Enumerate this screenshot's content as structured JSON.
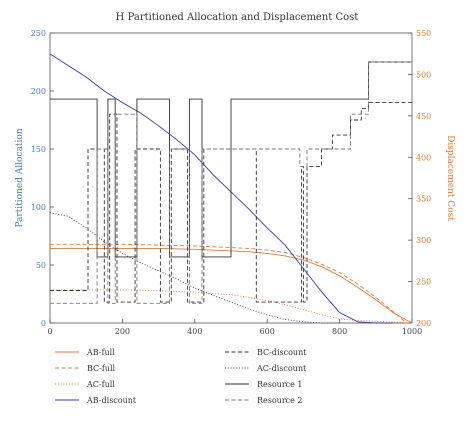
{
  "chart_data": {
    "type": "line",
    "title": "H Partitioned Allocation and Displacement Cost",
    "xlabel": "",
    "ylabel_left": "Partitioned Allocation",
    "ylabel_right": "Displacement Cost",
    "xlim": [
      0,
      1000
    ],
    "ylim_left": [
      0,
      250
    ],
    "ylim_right": [
      200,
      550
    ],
    "x_ticks": [
      "0",
      "200",
      "400",
      "600",
      "800",
      "1000"
    ],
    "y_left_ticks": [
      "0",
      "50",
      "100",
      "150",
      "200",
      "250"
    ],
    "y_right_ticks": [
      "200",
      "250",
      "300",
      "350",
      "400",
      "450",
      "500",
      "550"
    ],
    "colors": {
      "left_axis": "#3b7dc4",
      "right_axis": "#e07b39",
      "ab_discount": "#3a3aa8",
      "black": "#333333",
      "gray": "#777777"
    },
    "series": [
      {
        "name": "AB-full",
        "axis": "right",
        "style": "solid",
        "color": "#e07b39",
        "x": [
          0,
          100,
          200,
          300,
          400,
          500,
          550,
          600,
          650,
          700,
          750,
          800,
          850,
          900,
          950,
          1000
        ],
        "y": [
          290,
          290,
          290,
          290,
          289,
          287,
          286,
          284,
          281,
          276,
          268,
          257,
          243,
          228,
          212,
          200
        ]
      },
      {
        "name": "BC-full",
        "axis": "right",
        "style": "dashed",
        "color": "#e07b39",
        "x": [
          0,
          100,
          200,
          300,
          400,
          500,
          550,
          600,
          650,
          700,
          750,
          800,
          850,
          900,
          950,
          985
        ],
        "y": [
          295,
          295,
          295,
          294,
          293,
          291,
          290,
          288,
          285,
          279,
          271,
          261,
          247,
          231,
          213,
          200
        ]
      },
      {
        "name": "AC-full",
        "axis": "right",
        "style": "dotted",
        "color": "#e07b39",
        "x": [
          0,
          100,
          200,
          300,
          400,
          500,
          550,
          600,
          650,
          700,
          750,
          800,
          850,
          900,
          950,
          1000
        ],
        "y": [
          240,
          240,
          240,
          239,
          237,
          234,
          231,
          227,
          222,
          216,
          210,
          205,
          203,
          202,
          201,
          200
        ]
      },
      {
        "name": "AB-discount",
        "axis": "left",
        "style": "solid",
        "color": "#3a3aa8",
        "x": [
          0,
          50,
          100,
          150,
          200,
          250,
          300,
          350,
          400,
          450,
          500,
          550,
          600,
          650,
          700,
          750,
          800,
          850,
          900,
          950
        ],
        "y": [
          232,
          222,
          212,
          200,
          190,
          181,
          170,
          158,
          145,
          128,
          113,
          98,
          82,
          67,
          47,
          27,
          9,
          1,
          0,
          0
        ]
      },
      {
        "name": "BC-discount",
        "axis": "left",
        "style": "dashed",
        "color": "#333333",
        "x": [
          0,
          105,
          105,
          150,
          150,
          165,
          165,
          185,
          185,
          235,
          235,
          305,
          305,
          335,
          335,
          380,
          380,
          425,
          425,
          570,
          570,
          600,
          600,
          640,
          640,
          695,
          695,
          700,
          700,
          710,
          710,
          750,
          750,
          780,
          780,
          800,
          800,
          830,
          830,
          850,
          850,
          860,
          860,
          880,
          880,
          1000
        ],
        "y": [
          28,
          28,
          150,
          150,
          18,
          18,
          180,
          180,
          18,
          18,
          150,
          150,
          18,
          18,
          150,
          150,
          18,
          18,
          150,
          150,
          18,
          18,
          18,
          18,
          18,
          18,
          135,
          135,
          18,
          18,
          135,
          135,
          150,
          150,
          162,
          162,
          162,
          162,
          175,
          175,
          175,
          175,
          185,
          185,
          190,
          190
        ]
      },
      {
        "name": "AC-discount",
        "axis": "left",
        "style": "dotted",
        "color": "#3a3aa8",
        "x": [
          0,
          50,
          100,
          150,
          200,
          250,
          300,
          350,
          400,
          450,
          500,
          550,
          600,
          650,
          700,
          750,
          800
        ],
        "y": [
          95,
          92,
          82,
          70,
          60,
          52,
          45,
          38,
          30,
          24,
          18,
          12,
          7,
          3,
          1,
          0,
          0
        ]
      },
      {
        "name": "Resource 1",
        "axis": "left",
        "style": "solid",
        "color": "#333333",
        "x": [
          0,
          130,
          130,
          160,
          160,
          180,
          180,
          240,
          240,
          330,
          330,
          385,
          385,
          420,
          420,
          500,
          500,
          880,
          880,
          1000
        ],
        "y": [
          193,
          193,
          57,
          57,
          193,
          193,
          57,
          57,
          193,
          193,
          57,
          57,
          193,
          193,
          57,
          57,
          193,
          193,
          225,
          225
        ]
      },
      {
        "name": "Resource 2",
        "axis": "left",
        "style": "dashed",
        "color": "#777777",
        "x": [
          0,
          130,
          130,
          160,
          160,
          180,
          180,
          240,
          240,
          330,
          330,
          385,
          385,
          420,
          420,
          690,
          690,
          710,
          710,
          830,
          830,
          880,
          880,
          1000
        ],
        "y": [
          17,
          17,
          150,
          150,
          17,
          17,
          180,
          180,
          17,
          17,
          150,
          150,
          17,
          17,
          150,
          150,
          135,
          135,
          150,
          150,
          180,
          180,
          225,
          225
        ]
      }
    ],
    "legend": {
      "position": "bottom",
      "columns": 2,
      "order": [
        "AB-full",
        "BC-discount",
        "BC-full",
        "AC-discount",
        "AC-full",
        "Resource 1",
        "AB-discount",
        "Resource 2"
      ]
    },
    "grid": false
  }
}
